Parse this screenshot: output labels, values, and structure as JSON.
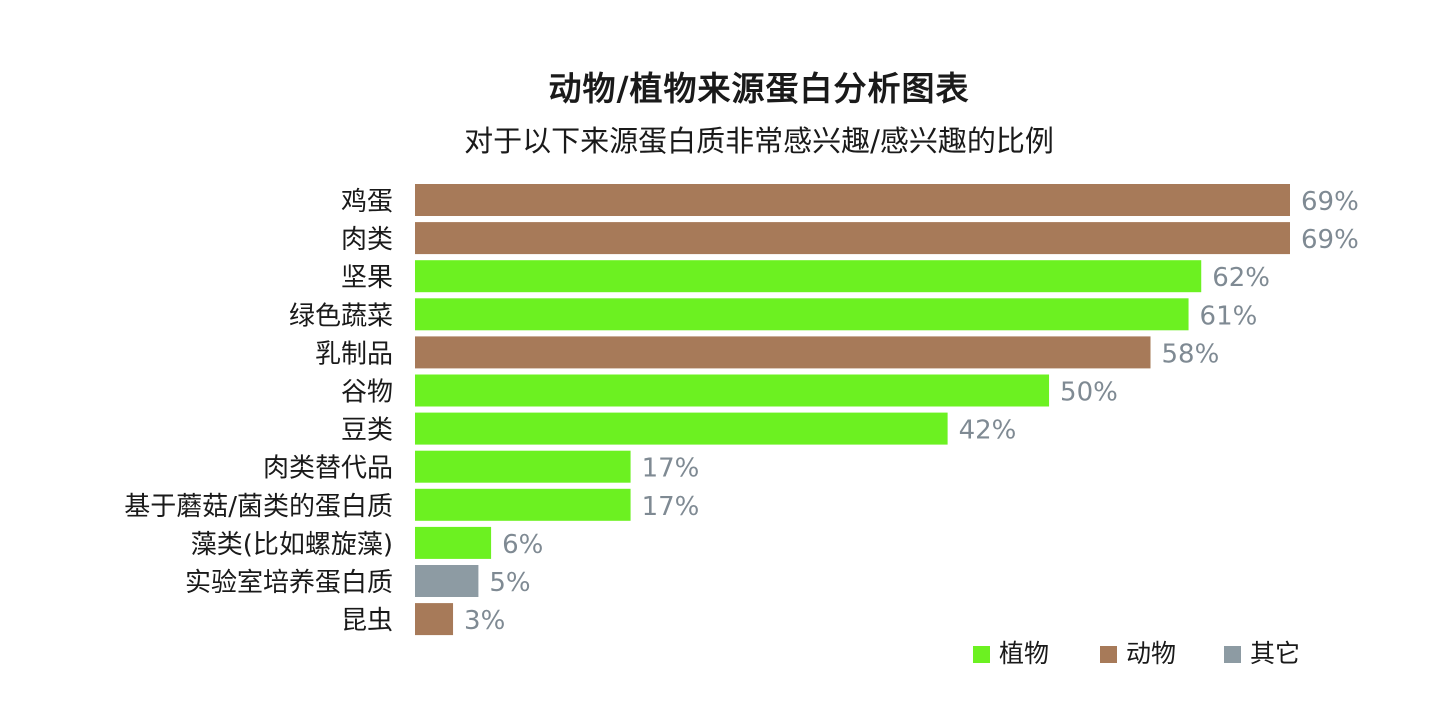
{
  "chart_data": {
    "type": "bar",
    "orientation": "horizontal",
    "title": "动物/植物来源蛋白分析图表",
    "subtitle": "对于以下来源蛋白质非常感兴趣/感兴趣的比例",
    "categories": [
      "鸡蛋",
      "肉类",
      "坚果",
      "绿色蔬菜",
      "乳制品",
      "谷物",
      "豆类",
      "肉类替代品",
      "基于蘑菇/菌类的蛋白质",
      "藻类(比如螺旋藻)",
      "实验室培养蛋白质",
      "昆虫"
    ],
    "values": [
      69,
      69,
      62,
      61,
      58,
      50,
      42,
      17,
      17,
      6,
      5,
      3
    ],
    "value_labels": [
      "69%",
      "69%",
      "62%",
      "61%",
      "58%",
      "50%",
      "42%",
      "17%",
      "17%",
      "6%",
      "5%",
      "3%"
    ],
    "groups": [
      "动物",
      "动物",
      "植物",
      "植物",
      "动物",
      "植物",
      "植物",
      "植物",
      "植物",
      "植物",
      "其它",
      "动物"
    ],
    "xlim": [
      0,
      69
    ],
    "grid": false,
    "legend": {
      "placement": "bottom-right",
      "items": [
        {
          "name": "植物",
          "color": "#6cf121"
        },
        {
          "name": "动物",
          "color": "#a77a59"
        },
        {
          "name": "其它",
          "color": "#8d9ba3"
        }
      ]
    },
    "colors": {
      "植物": "#6cf121",
      "动物": "#a77a59",
      "其它": "#8d9ba3",
      "value_label": "#7f8a93",
      "category_label": "#1a1a1a"
    }
  }
}
